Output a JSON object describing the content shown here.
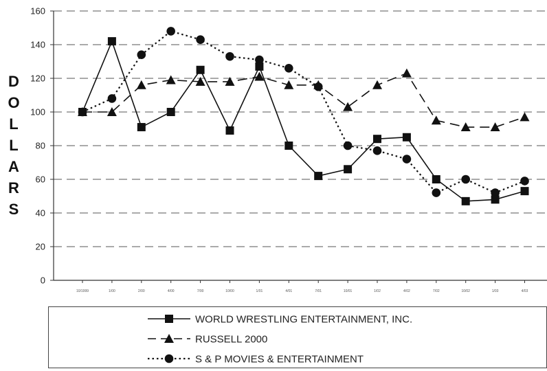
{
  "chart_data": {
    "type": "line",
    "title": "",
    "xlabel": "",
    "ylabel": "DOLLARS",
    "ylim": [
      0,
      160
    ],
    "yticks": [
      0,
      20,
      40,
      60,
      80,
      100,
      120,
      140,
      160
    ],
    "grid": "horizontal-dashed",
    "legend_position": "bottom",
    "categories": [
      "10/1999",
      "1/00",
      "2/00",
      "4/00",
      "7/00",
      "10/00",
      "1/01",
      "4/01",
      "7/01",
      "10/01",
      "1/02",
      "4/02",
      "7/02",
      "10/02",
      "1/03",
      "4/03"
    ],
    "series": [
      {
        "name": "WORLD WRESTLING ENTERTAINMENT, INC.",
        "marker": "square",
        "line": "solid",
        "values": [
          100,
          142,
          91,
          100,
          125,
          89,
          127,
          80,
          62,
          66,
          84,
          85,
          60,
          47,
          48,
          53
        ]
      },
      {
        "name": "RUSSELL 2000",
        "marker": "triangle",
        "line": "dashed",
        "values": [
          100,
          100,
          116,
          119,
          118,
          118,
          121,
          116,
          116,
          103,
          116,
          123,
          95,
          91,
          91,
          97
        ]
      },
      {
        "name": "S & P MOVIES & ENTERTAINMENT",
        "marker": "circle",
        "line": "dotted",
        "values": [
          100,
          108,
          134,
          148,
          143,
          133,
          131,
          126,
          115,
          80,
          77,
          72,
          52,
          60,
          52,
          59
        ]
      }
    ]
  }
}
